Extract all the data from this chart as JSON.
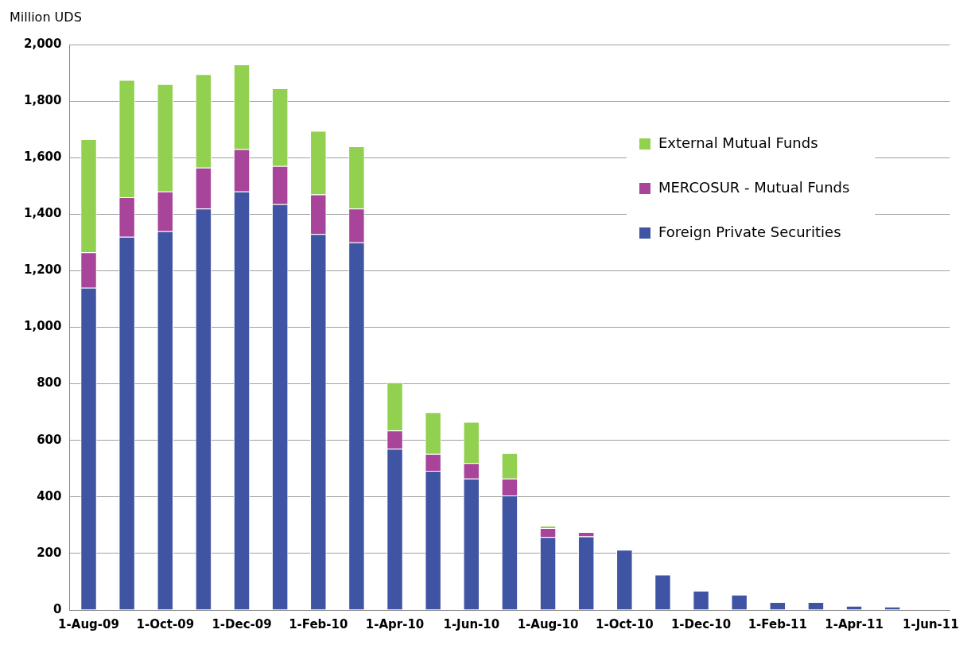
{
  "chart_data": {
    "type": "bar",
    "ylabel": "Million UDS",
    "stacked": true,
    "grid": "y",
    "legend": "top right",
    "categories": [
      "1-Aug-09",
      null,
      "1-Oct-09",
      null,
      "1-Dec-09",
      null,
      "1-Feb-10",
      null,
      "1-Apr-10",
      null,
      "1-Jun-10",
      null,
      "1-Aug-10",
      null,
      "1-Oct-10",
      null,
      "1-Dec-10",
      null,
      "1-Feb-11",
      null,
      "1-Apr-11",
      null,
      "1-Jun-11"
    ],
    "ylim": [
      0,
      2000
    ],
    "yticks": [
      {
        "value": 0,
        "label": "0"
      },
      {
        "value": 200,
        "label": "200"
      },
      {
        "value": 400,
        "label": "400"
      },
      {
        "value": 600,
        "label": "600"
      },
      {
        "value": 800,
        "label": "800"
      },
      {
        "value": 1000,
        "label": "1,000"
      },
      {
        "value": 1200,
        "label": "1,200"
      },
      {
        "value": 1400,
        "label": "1,400"
      },
      {
        "value": 1600,
        "label": "1,600"
      },
      {
        "value": 1800,
        "label": "1,800"
      },
      {
        "value": 2000,
        "label": "2,000"
      }
    ],
    "series": [
      {
        "name": "Foreign Private Securities",
        "color": "#4054a4",
        "values": [
          1140,
          1320,
          1340,
          1420,
          1480,
          1435,
          1330,
          1300,
          570,
          492,
          465,
          405,
          258,
          260,
          213,
          125,
          68,
          54,
          28,
          28,
          15,
          12,
          null
        ]
      },
      {
        "name": "MERCOSUR - Mutual Funds",
        "color": "#a8459a",
        "values": [
          125,
          140,
          140,
          145,
          150,
          135,
          140,
          120,
          65,
          60,
          55,
          60,
          32,
          16,
          null,
          null,
          null,
          null,
          null,
          null,
          null,
          null,
          null
        ]
      },
      {
        "name": "External Mutual Funds",
        "color": "#92d050",
        "values": [
          400,
          415,
          380,
          330,
          300,
          275,
          225,
          220,
          170,
          148,
          145,
          90,
          8,
          null,
          null,
          null,
          null,
          null,
          null,
          null,
          null,
          null,
          null
        ]
      }
    ]
  }
}
